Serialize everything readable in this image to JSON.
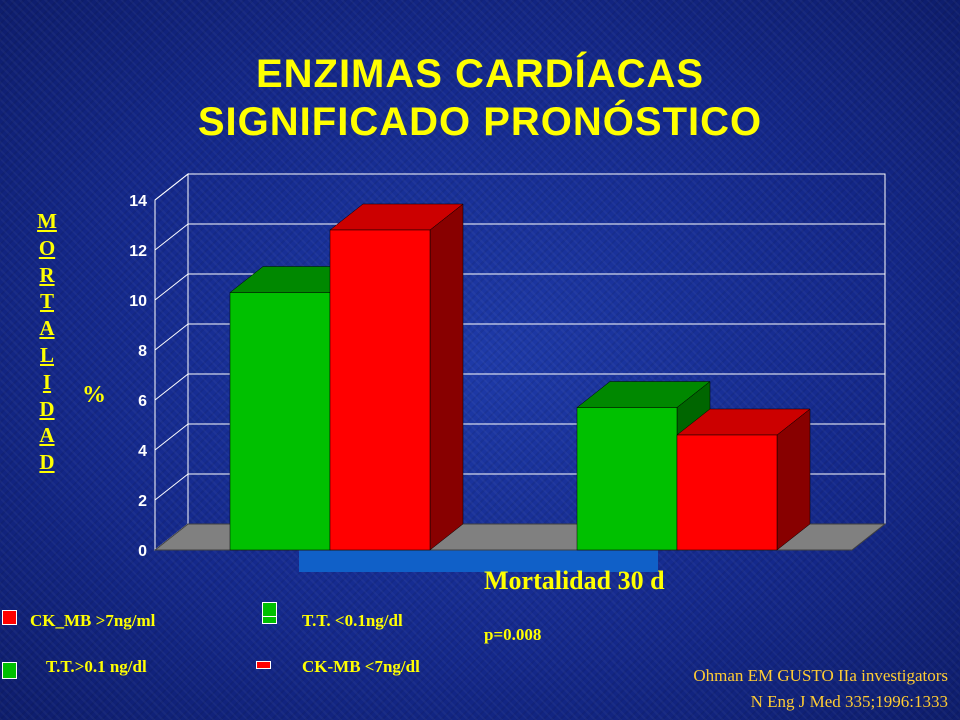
{
  "title": {
    "line1": "ENZIMAS CARDÍACAS",
    "line2": "SIGNIFICADO PRONÓSTICO"
  },
  "colors": {
    "text": "#ffff00",
    "green": "#00c000",
    "red": "#ff0000",
    "floor": "#808080",
    "highlight": "#1060c8"
  },
  "chart_data": {
    "type": "bar",
    "ylabel": "MORTALIDAD",
    "unit": "%",
    "xlabel": "Mortalidad 30 d",
    "annotation": "p=0.008",
    "ylim": [
      0,
      14
    ],
    "yticks": [
      "0",
      "2",
      "4",
      "6",
      "8",
      "10",
      "12",
      "14"
    ],
    "grid": true,
    "groups": [
      {
        "bars": [
          {
            "color": "green",
            "value": 10.3
          },
          {
            "color": "red",
            "value": 12.8
          }
        ]
      },
      {
        "bars": [
          {
            "color": "green",
            "value": 5.7
          },
          {
            "color": "red",
            "value": 4.6
          }
        ]
      }
    ]
  },
  "legend": [
    {
      "label": "CK_MB >7ng/ml",
      "color": "#ff0000"
    },
    {
      "label": "T.T. <0.1ng/dl",
      "color": "#00c000"
    },
    {
      "label": "T.T.>0.1 ng/dl",
      "color": "#00c000"
    },
    {
      "label": "CK-MB <7ng/dl",
      "color": "#ff0000"
    }
  ],
  "source": {
    "line1": "Ohman EM GUSTO IIa investigators",
    "line2": "N Eng J Med 335;1996:1333"
  }
}
